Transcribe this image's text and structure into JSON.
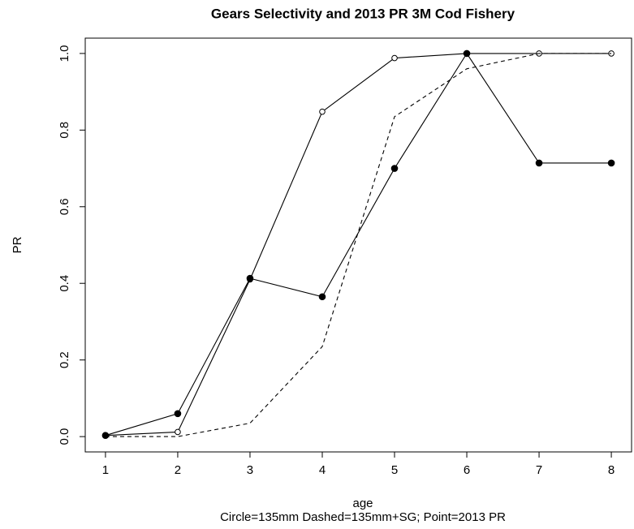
{
  "chart_data": {
    "type": "line",
    "title": "Gears Selectivity and 2013 PR 3M Cod Fishery",
    "xlabel": "age",
    "subtitle": "Circle=135mm Dashed=135mm+SG; Point=2013 PR",
    "ylabel": "PR",
    "x": [
      1,
      2,
      3,
      4,
      5,
      6,
      7,
      8
    ],
    "xlim": [
      0.72,
      8.28
    ],
    "xticks": [
      1,
      2,
      3,
      4,
      5,
      6,
      7,
      8
    ],
    "ylim": [
      -0.04,
      1.04
    ],
    "yticks": [
      {
        "value": 0,
        "label": "0.0"
      },
      0.2,
      0.4,
      0.6,
      0.8,
      {
        "value": 1,
        "label": "1.0"
      }
    ],
    "series": [
      {
        "name": "135mm",
        "color": "#000000",
        "marker": "open-circle",
        "dash": false,
        "values": [
          0.003,
          0.012,
          0.41,
          0.848,
          0.988,
          1.0,
          1.0,
          1.0
        ]
      },
      {
        "name": "135mm+SG",
        "color": "#000000",
        "marker": "none",
        "dash": true,
        "values": [
          0.0,
          0.0,
          0.035,
          0.235,
          0.835,
          0.96,
          1.0,
          1.0
        ]
      },
      {
        "name": "2013 PR",
        "color": "#000000",
        "marker": "filled-circle",
        "dash": false,
        "values": [
          0.003,
          0.06,
          0.413,
          0.365,
          0.7,
          1.0,
          0.714,
          0.714
        ]
      }
    ]
  }
}
